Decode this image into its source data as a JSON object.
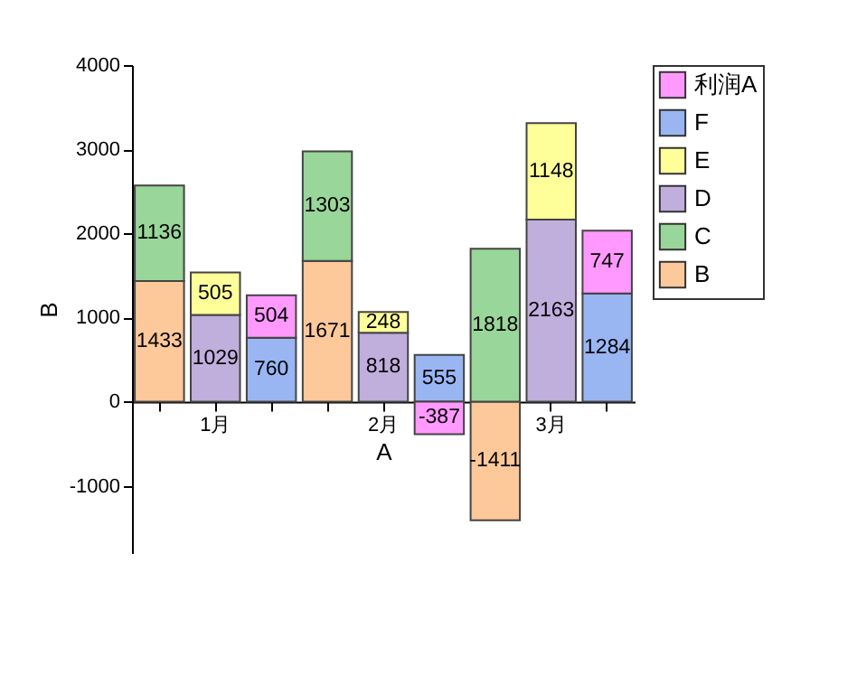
{
  "chart_data": {
    "type": "bar",
    "stacked": true,
    "xlabel": "A",
    "ylabel": "B",
    "categories": [
      null,
      "1月",
      null,
      null,
      "2月",
      null,
      null,
      "3月",
      null
    ],
    "series": [
      {
        "name": "B",
        "color": "#fdc89a",
        "values": [
          1433,
          null,
          null,
          1671,
          null,
          null,
          -1411,
          null,
          null
        ]
      },
      {
        "name": "C",
        "color": "#99d699",
        "values": [
          1136,
          null,
          null,
          1303,
          null,
          null,
          1818,
          null,
          null
        ]
      },
      {
        "name": "D",
        "color": "#c0aedc",
        "values": [
          null,
          1029,
          null,
          null,
          818,
          null,
          null,
          2163,
          null
        ]
      },
      {
        "name": "E",
        "color": "#ffff99",
        "values": [
          null,
          505,
          null,
          null,
          248,
          null,
          null,
          1148,
          null
        ]
      },
      {
        "name": "F",
        "color": "#99b6f3",
        "values": [
          null,
          null,
          760,
          null,
          null,
          555,
          null,
          null,
          1284
        ]
      },
      {
        "name": "利润A",
        "color": "#ff99ff",
        "values": [
          null,
          null,
          504,
          null,
          null,
          -387,
          null,
          null,
          747
        ]
      }
    ],
    "ylim": [
      -1800,
      4000
    ],
    "yticks": [
      -1000,
      0,
      1000,
      2000,
      3000,
      4000
    ],
    "data_labels": true,
    "legend": "top right"
  }
}
